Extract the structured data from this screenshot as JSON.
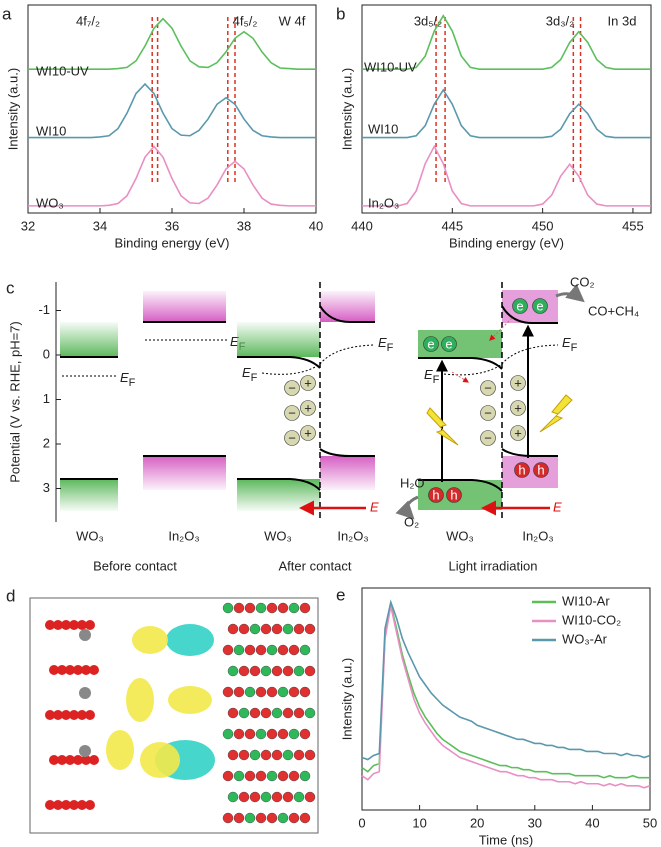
{
  "chart_data": [
    {
      "type": "line",
      "label": "a",
      "xlabel": "Binding energy (eV)",
      "ylabel": "Intensity (a.u.)",
      "legend": "inline",
      "annotations": [
        "4f₇/₂",
        "4f₅/₂",
        "W 4f"
      ],
      "ref_lines": [
        35.45,
        35.6,
        37.55,
        37.75
      ],
      "ref_color": "#e0301e",
      "xlim": [
        32,
        40
      ],
      "xticks": [
        32,
        34,
        36,
        38,
        40
      ],
      "ylim": [
        -0.1,
        3.4
      ],
      "x": [
        32,
        32.25,
        32.5,
        32.75,
        33,
        33.25,
        33.5,
        33.75,
        34,
        34.25,
        34.5,
        34.75,
        35,
        35.25,
        35.5,
        35.75,
        36,
        36.25,
        36.5,
        36.75,
        37,
        37.25,
        37.5,
        37.75,
        38,
        38.25,
        38.5,
        38.75,
        39,
        39.25,
        39.5,
        39.75,
        40
      ],
      "series": [
        {
          "name": "WI10-UV",
          "color": "#5cbf5c",
          "values": [
            2.32,
            2.32,
            2.32,
            2.32,
            2.32,
            2.32,
            2.32,
            2.32,
            2.32,
            2.32,
            2.33,
            2.35,
            2.46,
            2.71,
            3.01,
            3.17,
            3.01,
            2.71,
            2.46,
            2.36,
            2.35,
            2.43,
            2.61,
            2.84,
            2.95,
            2.84,
            2.61,
            2.43,
            2.34,
            2.33,
            2.32,
            2.32,
            2.32
          ]
        },
        {
          "name": "WI10",
          "color": "#5a98ad",
          "values": [
            1.17,
            1.17,
            1.17,
            1.17,
            1.17,
            1.17,
            1.17,
            1.17,
            1.18,
            1.2,
            1.32,
            1.58,
            1.91,
            2.07,
            1.91,
            1.58,
            1.32,
            1.21,
            1.2,
            1.29,
            1.48,
            1.73,
            1.84,
            1.73,
            1.48,
            1.29,
            1.2,
            1.18,
            1.17,
            1.17,
            1.17,
            1.17,
            1.17
          ]
        },
        {
          "name": "WO₃",
          "color": "#e88fc4",
          "values": [
            0.02,
            0.02,
            0.02,
            0.02,
            0.02,
            0.02,
            0.02,
            0.02,
            0.02,
            0.03,
            0.06,
            0.19,
            0.48,
            0.84,
            1.02,
            0.84,
            0.48,
            0.19,
            0.07,
            0.06,
            0.15,
            0.37,
            0.64,
            0.77,
            0.64,
            0.37,
            0.15,
            0.05,
            0.03,
            0.02,
            0.02,
            0.02,
            0.02
          ]
        }
      ]
    },
    {
      "type": "line",
      "label": "b",
      "xlabel": "Binding energy (eV)",
      "ylabel": "Intensity (a.u.)",
      "legend": "inline",
      "annotations": [
        "3d₅/₂",
        "3d₃/₂",
        "In 3d"
      ],
      "ref_lines": [
        444.1,
        444.6,
        451.7,
        452.1
      ],
      "ref_color": "#e0301e",
      "xlim": [
        440,
        456
      ],
      "xticks": [
        440,
        445,
        450,
        455
      ],
      "ylim": [
        -0.1,
        3.4
      ],
      "x": [
        440,
        440.5,
        441,
        441.5,
        442,
        442.5,
        443,
        443.5,
        444,
        444.5,
        445,
        445.5,
        446,
        446.5,
        447,
        447.5,
        448,
        448.5,
        449,
        449.5,
        450,
        450.5,
        451,
        451.5,
        452,
        452.5,
        453,
        453.5,
        454,
        454.5,
        455,
        455.5,
        456
      ],
      "series": [
        {
          "name": "WI10-UV",
          "color": "#5cbf5c",
          "values": [
            2.32,
            2.32,
            2.32,
            2.32,
            2.32,
            2.32,
            2.35,
            2.54,
            2.96,
            3.22,
            2.96,
            2.54,
            2.35,
            2.32,
            2.32,
            2.32,
            2.32,
            2.32,
            2.32,
            2.32,
            2.32,
            2.35,
            2.48,
            2.77,
            2.95,
            2.77,
            2.48,
            2.35,
            2.32,
            2.32,
            2.32,
            2.32,
            2.32
          ]
        },
        {
          "name": "WI10",
          "color": "#5a98ad",
          "values": [
            1.17,
            1.17,
            1.17,
            1.17,
            1.17,
            1.17,
            1.2,
            1.37,
            1.73,
            1.97,
            1.73,
            1.37,
            1.2,
            1.17,
            1.17,
            1.17,
            1.17,
            1.17,
            1.17,
            1.17,
            1.17,
            1.19,
            1.31,
            1.57,
            1.73,
            1.57,
            1.31,
            1.19,
            1.17,
            1.17,
            1.17,
            1.17,
            1.17
          ]
        },
        {
          "name": "In₂O₃",
          "color": "#e88fc4",
          "values": [
            0.02,
            0.02,
            0.02,
            0.02,
            0.02,
            0.06,
            0.27,
            0.73,
            1.02,
            0.73,
            0.27,
            0.06,
            0.02,
            0.02,
            0.02,
            0.02,
            0.02,
            0.02,
            0.02,
            0.02,
            0.05,
            0.2,
            0.52,
            0.72,
            0.52,
            0.2,
            0.05,
            0.02,
            0.02,
            0.02,
            0.02,
            0.02,
            0.02
          ]
        }
      ]
    },
    {
      "type": "line",
      "label": "e",
      "xlabel": "Time (ns)",
      "ylabel": "Intensity (a.u.)",
      "legend": "upper right",
      "xlim": [
        0,
        50
      ],
      "xticks": [
        0,
        10,
        20,
        30,
        40,
        50
      ],
      "ylim": [
        -0.05,
        1.05
      ],
      "x": [
        0,
        1,
        2,
        3,
        4,
        5,
        6,
        7,
        8,
        9,
        10,
        11,
        12,
        13,
        14,
        15,
        16,
        17,
        18,
        19,
        20,
        21,
        22,
        23,
        24,
        25,
        26,
        27,
        28,
        29,
        30,
        31,
        32,
        33,
        34,
        35,
        36,
        37,
        38,
        39,
        40,
        41,
        42,
        43,
        44,
        45,
        46,
        47,
        48,
        49,
        50
      ],
      "series": [
        {
          "name": "WI10-Ar",
          "color": "#5cbf5c",
          "values": [
            0.16,
            0.14,
            0.17,
            0.18,
            0.82,
            0.97,
            0.85,
            0.72,
            0.62,
            0.53,
            0.46,
            0.41,
            0.37,
            0.33,
            0.3,
            0.28,
            0.26,
            0.24,
            0.23,
            0.22,
            0.21,
            0.2,
            0.19,
            0.18,
            0.17,
            0.17,
            0.16,
            0.16,
            0.15,
            0.15,
            0.14,
            0.14,
            0.14,
            0.13,
            0.13,
            0.13,
            0.13,
            0.12,
            0.12,
            0.12,
            0.12,
            0.12,
            0.11,
            0.12,
            0.11,
            0.11,
            0.11,
            0.12,
            0.11,
            0.11,
            0.11
          ]
        },
        {
          "name": "WI10-CO₂",
          "color": "#e88fc4",
          "values": [
            0.12,
            0.1,
            0.13,
            0.14,
            0.8,
            0.96,
            0.83,
            0.7,
            0.6,
            0.5,
            0.43,
            0.38,
            0.34,
            0.3,
            0.27,
            0.25,
            0.23,
            0.21,
            0.2,
            0.19,
            0.18,
            0.17,
            0.16,
            0.15,
            0.14,
            0.14,
            0.13,
            0.12,
            0.12,
            0.11,
            0.11,
            0.1,
            0.1,
            0.1,
            0.09,
            0.09,
            0.09,
            0.08,
            0.09,
            0.08,
            0.08,
            0.08,
            0.07,
            0.08,
            0.07,
            0.08,
            0.07,
            0.07,
            0.07,
            0.06,
            0.07
          ]
        },
        {
          "name": "WO₃-Ar",
          "color": "#5a98ad",
          "values": [
            0.21,
            0.2,
            0.22,
            0.23,
            0.85,
            0.98,
            0.9,
            0.8,
            0.73,
            0.67,
            0.61,
            0.57,
            0.53,
            0.5,
            0.47,
            0.45,
            0.43,
            0.41,
            0.4,
            0.39,
            0.37,
            0.36,
            0.35,
            0.34,
            0.33,
            0.32,
            0.31,
            0.3,
            0.3,
            0.29,
            0.28,
            0.28,
            0.27,
            0.27,
            0.26,
            0.26,
            0.25,
            0.25,
            0.25,
            0.24,
            0.24,
            0.24,
            0.23,
            0.23,
            0.23,
            0.22,
            0.23,
            0.22,
            0.22,
            0.21,
            0.22
          ]
        }
      ]
    }
  ],
  "diagram": {
    "label": "c",
    "axis_label": "Potential (V vs. RHE, pH=7)",
    "yticks": [
      -1,
      0,
      1,
      2,
      3
    ],
    "before": {
      "caption": "Before contact",
      "left": "WO₃",
      "right": "In₂O₃",
      "fermi": "E",
      "fermi_sub": "F"
    },
    "after": {
      "caption": "After contact",
      "left": "WO₃",
      "right": "In₂O₃",
      "fermi": "E",
      "fermi_sub": "F",
      "field": "E",
      "minus": "−",
      "plus": "+"
    },
    "light": {
      "caption": "Light irradiation",
      "left": "WO₃",
      "right": "In₂O₃",
      "fermi": "E",
      "fermi_sub": "F",
      "field": "E",
      "minus": "−",
      "plus": "+",
      "electron": "e",
      "hole": "h",
      "co2": "CO₂",
      "products": "CO+CH₄",
      "water": "H₂O",
      "oxygen": "O₂"
    }
  },
  "image": {
    "label": "d"
  }
}
